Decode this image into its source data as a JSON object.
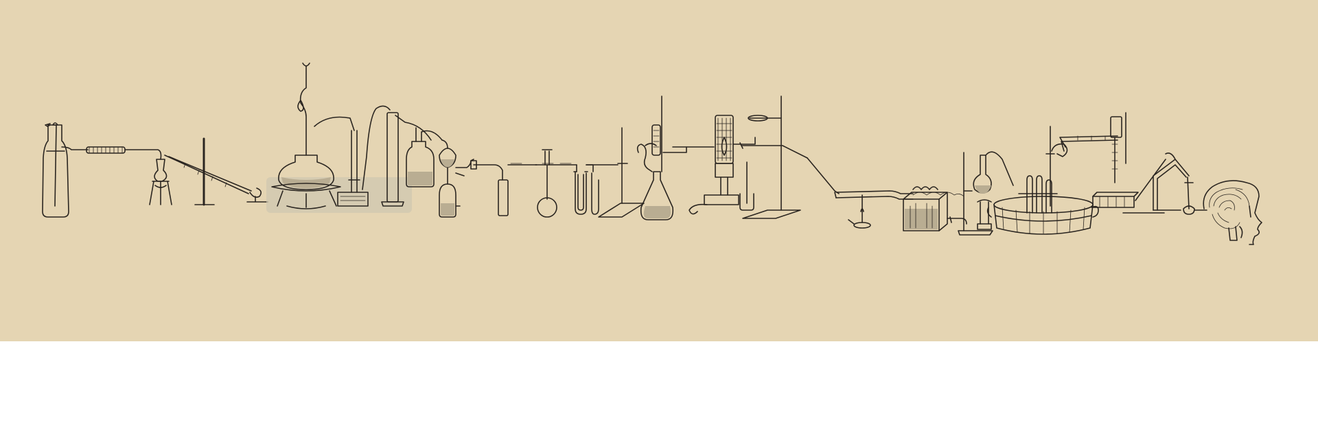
{
  "illustration": {
    "subject": "lab-apparatus-chain-to-brain",
    "background_color": "#e5d5b3",
    "ink_color": "#2a2520",
    "glass_color": "#cfc6b0",
    "liquid_color": "#b9ad92",
    "lower_area_color": "#ffffff"
  }
}
